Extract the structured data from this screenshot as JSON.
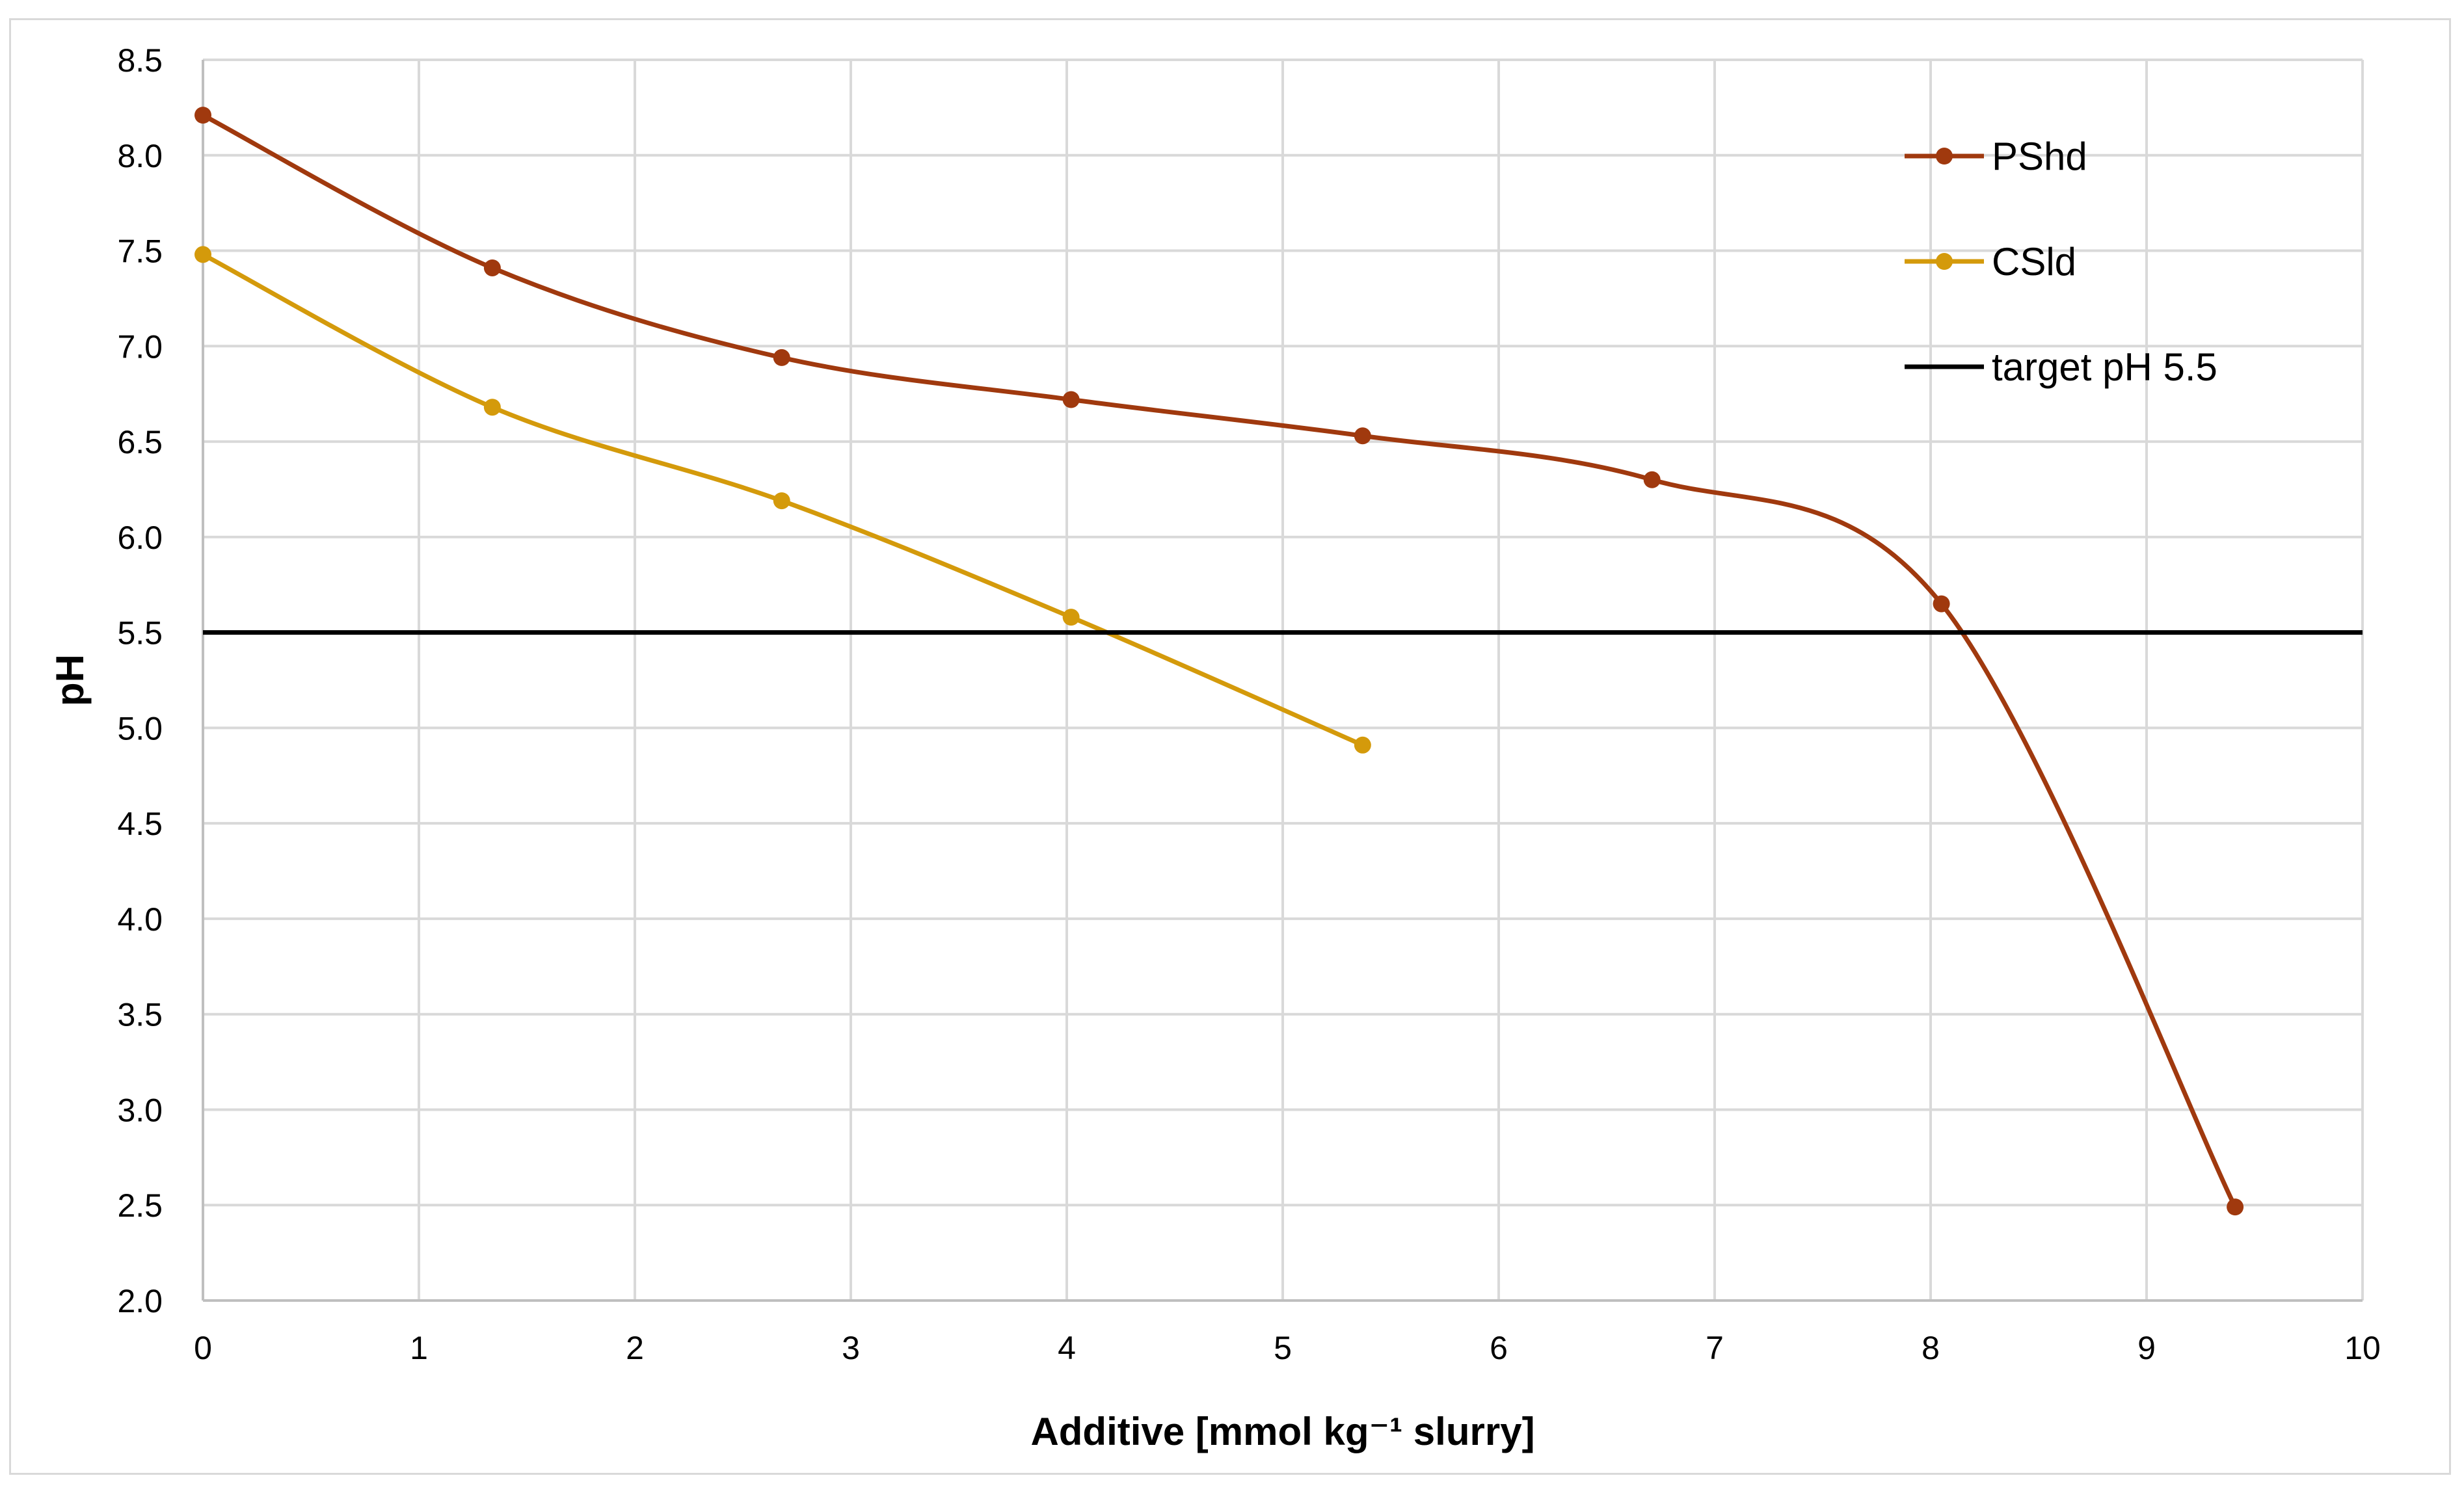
{
  "chart_data": {
    "type": "line",
    "title": "",
    "xlabel": "Additive [mmol kg⁻¹ slurry]",
    "ylabel": "pH",
    "xlim": [
      0,
      10
    ],
    "ylim": [
      2.0,
      8.5
    ],
    "x_ticks": [
      "0",
      "1",
      "2",
      "3",
      "4",
      "5",
      "6",
      "7",
      "8",
      "9",
      "10"
    ],
    "y_ticks": [
      "2.0",
      "2.5",
      "3.0",
      "3.5",
      "4.0",
      "4.5",
      "5.0",
      "5.5",
      "6.0",
      "6.5",
      "7.0",
      "7.5",
      "8.0",
      "8.5"
    ],
    "grid": true,
    "legend_position": "top-right",
    "series": [
      {
        "name": "PShd",
        "color": "#a0390e",
        "smooth": true,
        "markers": true,
        "x": [
          0,
          1.34,
          2.68,
          4.02,
          5.37,
          6.71,
          8.05,
          9.41
        ],
        "y": [
          8.21,
          7.41,
          6.94,
          6.72,
          6.53,
          6.3,
          5.65,
          2.49
        ]
      },
      {
        "name": "CSld",
        "color": "#d49a0b",
        "smooth": true,
        "markers": true,
        "x": [
          0,
          1.34,
          2.68,
          4.02,
          5.37
        ],
        "y": [
          7.48,
          6.68,
          6.19,
          5.58,
          4.91
        ]
      },
      {
        "name": "target pH 5.5",
        "color": "#000000",
        "smooth": false,
        "markers": false,
        "x": [
          0,
          10
        ],
        "y": [
          5.5,
          5.5
        ]
      }
    ]
  }
}
